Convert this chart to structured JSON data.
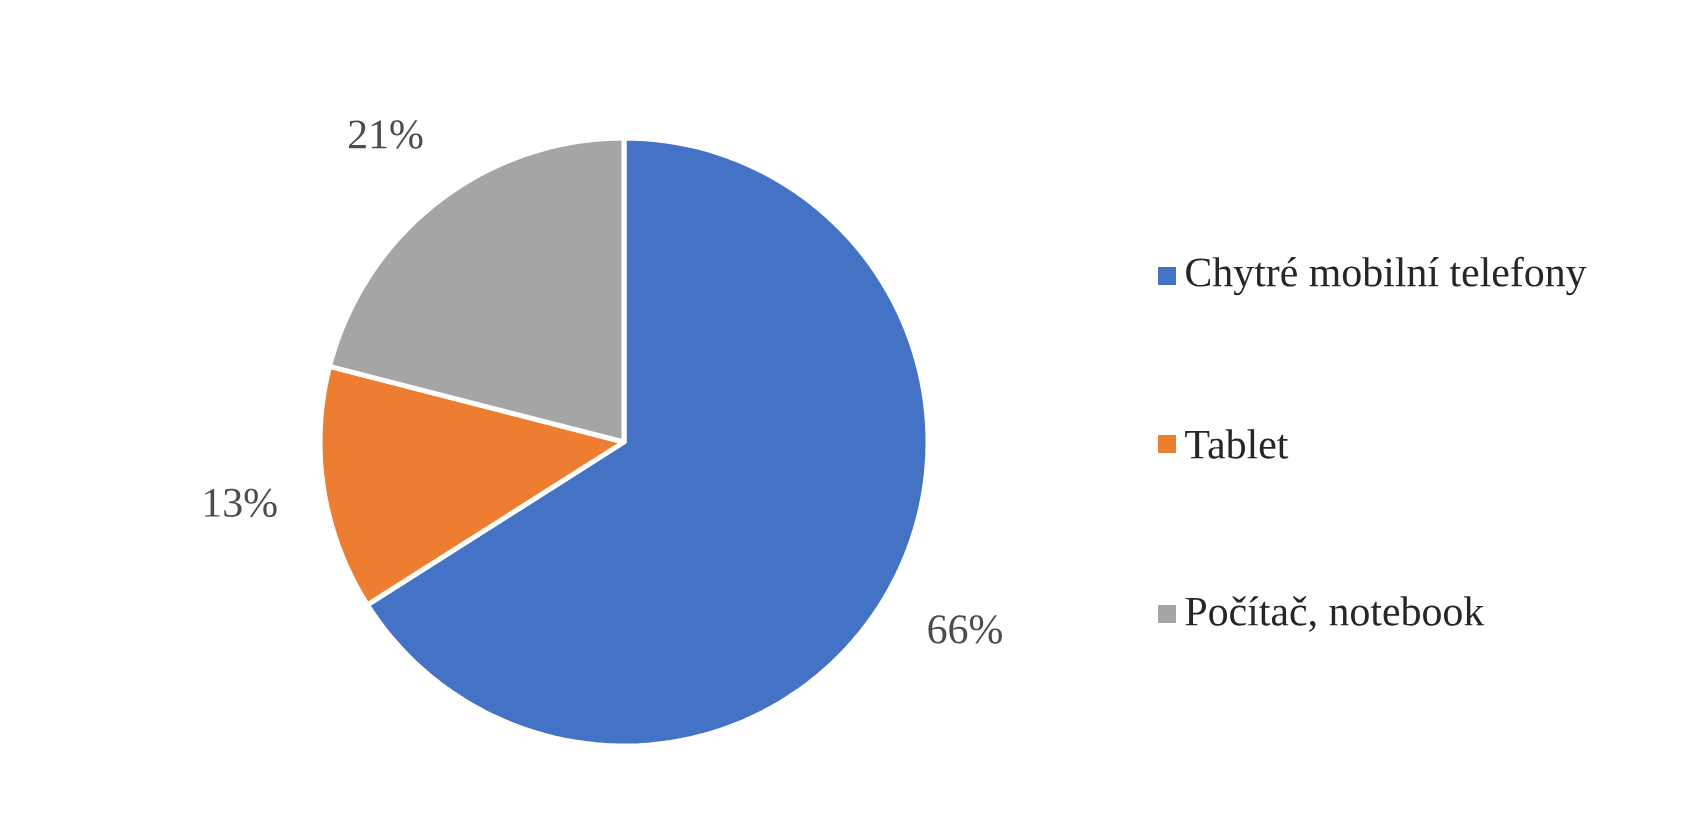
{
  "chart_data": {
    "type": "pie",
    "categories": [
      "Chytré mobilní telefony",
      "Tablet",
      "Počítač, notebook"
    ],
    "values": [
      66,
      13,
      21
    ],
    "value_labels": [
      "66%",
      "13%",
      "21%"
    ],
    "colors": [
      "#4472c4",
      "#ed7d31",
      "#a5a5a5"
    ],
    "legend": "right"
  }
}
